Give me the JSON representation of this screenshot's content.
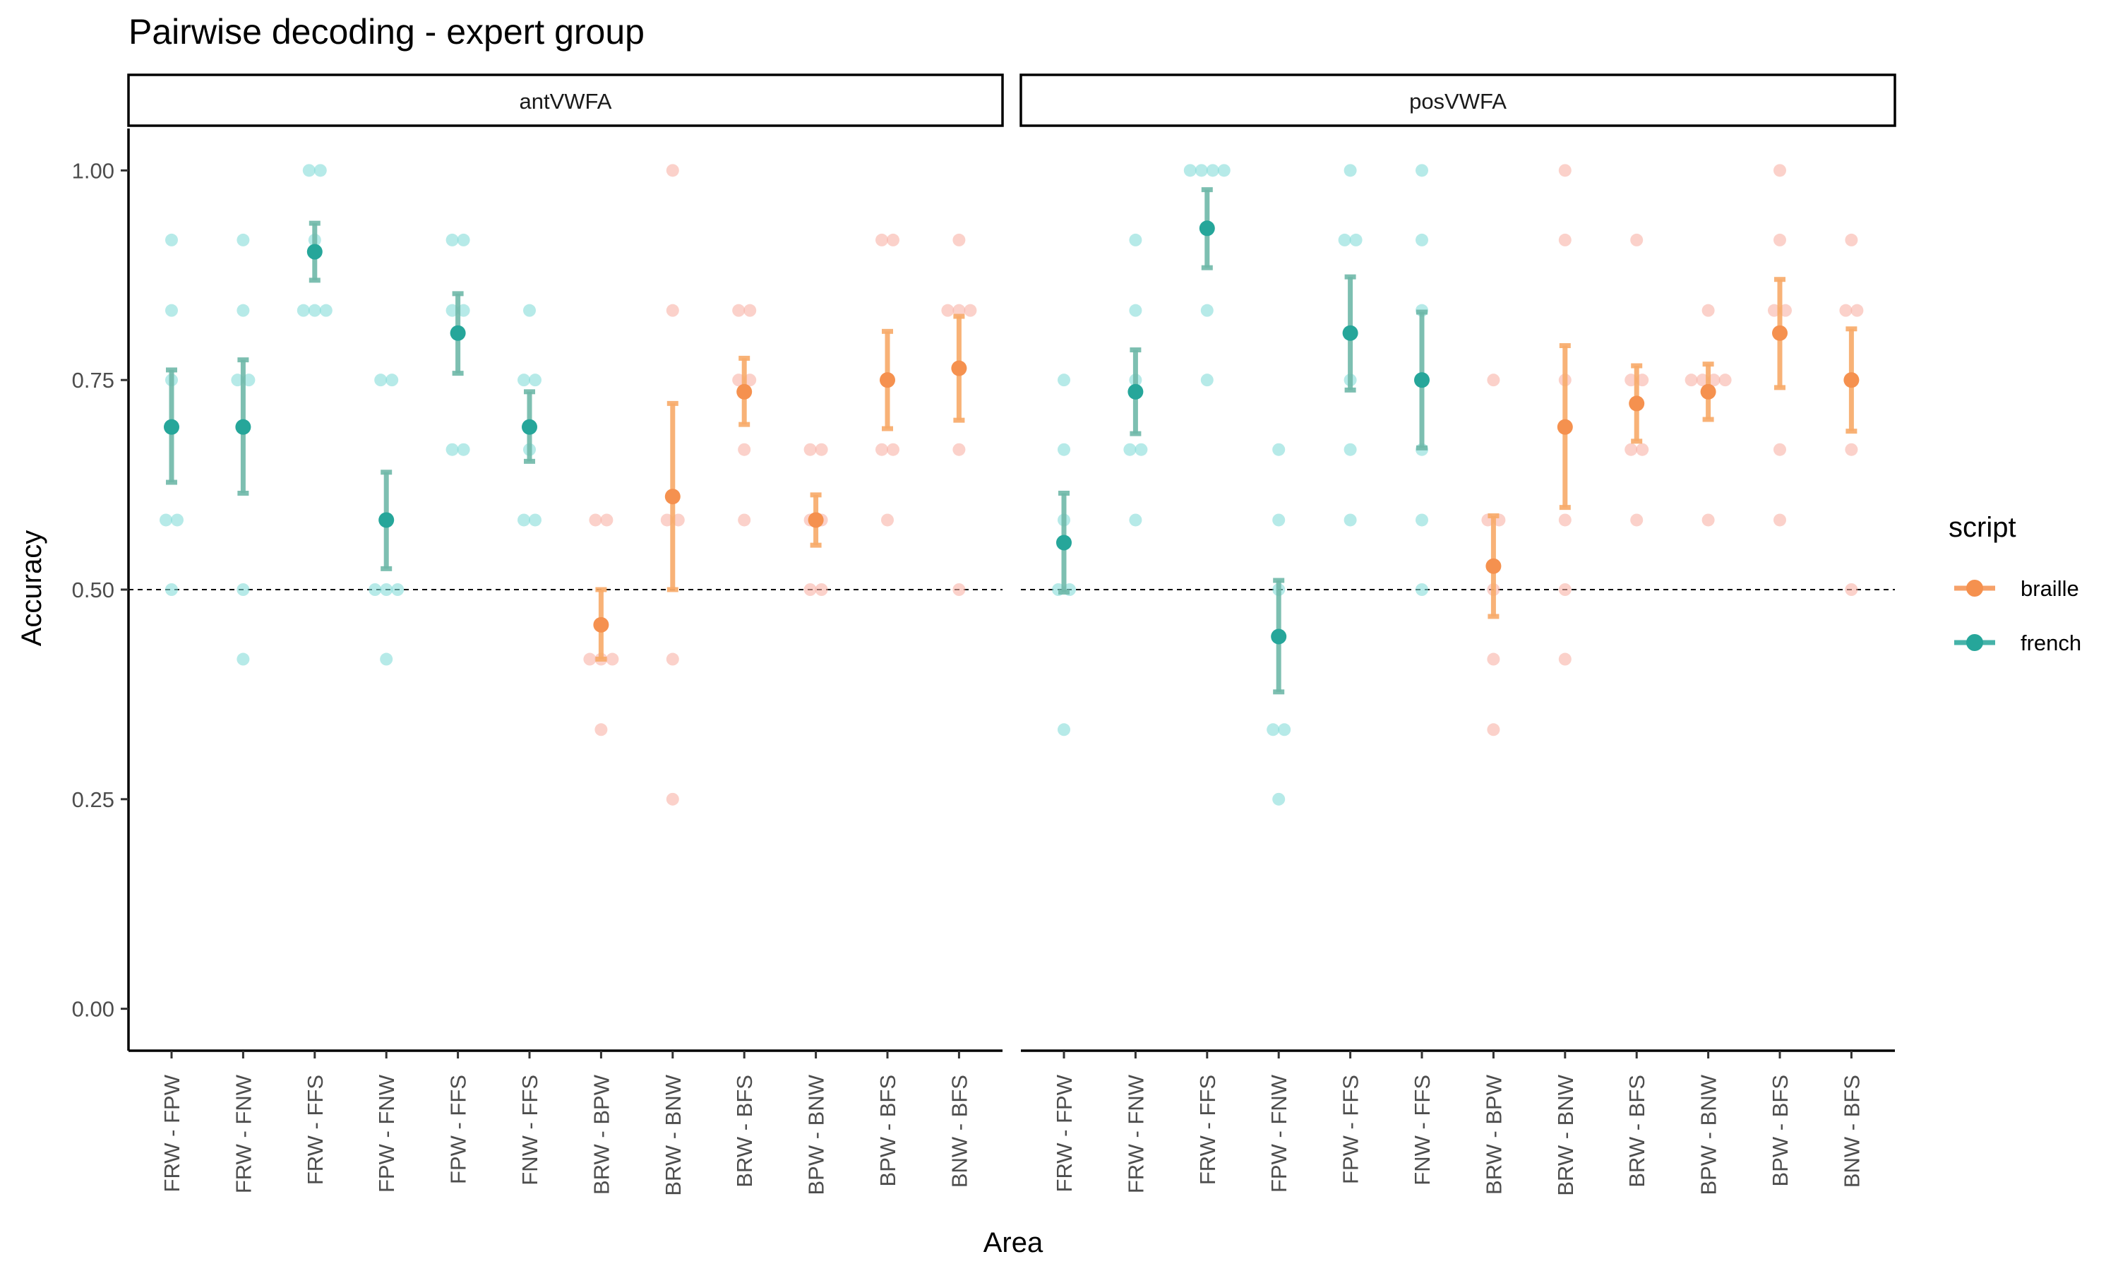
{
  "chart_data": {
    "type": "scatter",
    "title": "Pairwise decoding - expert group",
    "xlabel": "Area",
    "ylabel": "Accuracy",
    "ylim": [
      -0.05,
      1.05
    ],
    "yticks": [
      0,
      0.25,
      0.5,
      0.75,
      1.0
    ],
    "ytick_labels": [
      "0.00",
      "0.25",
      "0.50",
      "0.75",
      "1.00"
    ],
    "reference_line": 0.5,
    "grid": false,
    "legend": {
      "title": "script",
      "position": "right",
      "entries": [
        {
          "name": "braille",
          "color": "#F5914F"
        },
        {
          "name": "french",
          "color": "#26A69A"
        }
      ]
    },
    "colors": {
      "braille_point": "#F9B3A6",
      "french_point": "#86DCD8",
      "braille_mean": "#F5914F",
      "french_mean": "#26A69A",
      "braille_bar": "#F7AA68",
      "french_bar": "#6FB8A8"
    },
    "categories": [
      "FRW - FPW",
      "FRW - FNW",
      "FRW - FFS",
      "FPW - FNW",
      "FPW - FFS",
      "FNW - FFS",
      "BRW - BPW",
      "BRW - BNW",
      "BRW - BFS",
      "BPW - BNW",
      "BPW - BFS",
      "BNW - BFS"
    ],
    "category_script": [
      "french",
      "french",
      "french",
      "french",
      "french",
      "french",
      "braille",
      "braille",
      "braille",
      "braille",
      "braille",
      "braille"
    ],
    "panels": [
      {
        "name": "antVWFA",
        "groups": [
          {
            "mean": 0.694,
            "lower": 0.628,
            "upper": 0.762,
            "points": [
              0.917,
              0.833,
              0.75,
              0.583,
              0.583,
              0.5
            ]
          },
          {
            "mean": 0.694,
            "lower": 0.615,
            "upper": 0.774,
            "points": [
              0.917,
              0.833,
              0.75,
              0.75,
              0.5,
              0.417
            ]
          },
          {
            "mean": 0.903,
            "lower": 0.869,
            "upper": 0.937,
            "points": [
              1.0,
              1.0,
              0.917,
              0.833,
              0.833,
              0.833
            ]
          },
          {
            "mean": 0.583,
            "lower": 0.525,
            "upper": 0.64,
            "points": [
              0.75,
              0.75,
              0.5,
              0.5,
              0.5,
              0.417
            ]
          },
          {
            "mean": 0.806,
            "lower": 0.758,
            "upper": 0.853,
            "points": [
              0.917,
              0.917,
              0.833,
              0.833,
              0.667,
              0.667
            ]
          },
          {
            "mean": 0.694,
            "lower": 0.653,
            "upper": 0.736,
            "points": [
              0.833,
              0.75,
              0.75,
              0.667,
              0.583,
              0.583
            ]
          },
          {
            "mean": 0.458,
            "lower": 0.417,
            "upper": 0.5,
            "points": [
              0.583,
              0.583,
              0.417,
              0.417,
              0.417,
              0.333
            ]
          },
          {
            "mean": 0.611,
            "lower": 0.5,
            "upper": 0.722,
            "points": [
              1.0,
              0.833,
              0.583,
              0.583,
              0.417,
              0.25
            ]
          },
          {
            "mean": 0.736,
            "lower": 0.697,
            "upper": 0.776,
            "points": [
              0.833,
              0.833,
              0.75,
              0.75,
              0.667,
              0.583
            ]
          },
          {
            "mean": 0.583,
            "lower": 0.553,
            "upper": 0.613,
            "points": [
              0.667,
              0.667,
              0.583,
              0.583,
              0.5,
              0.5
            ]
          },
          {
            "mean": 0.75,
            "lower": 0.692,
            "upper": 0.808,
            "points": [
              0.917,
              0.917,
              0.75,
              0.667,
              0.667,
              0.583
            ]
          },
          {
            "mean": 0.764,
            "lower": 0.702,
            "upper": 0.826,
            "points": [
              0.917,
              0.833,
              0.833,
              0.833,
              0.667,
              0.5
            ]
          }
        ]
      },
      {
        "name": "posVWFA",
        "groups": [
          {
            "mean": 0.556,
            "lower": 0.497,
            "upper": 0.615,
            "points": [
              0.75,
              0.667,
              0.583,
              0.5,
              0.5,
              0.333
            ]
          },
          {
            "mean": 0.736,
            "lower": 0.686,
            "upper": 0.786,
            "points": [
              0.917,
              0.833,
              0.75,
              0.667,
              0.667,
              0.583
            ]
          },
          {
            "mean": 0.931,
            "lower": 0.884,
            "upper": 0.977,
            "points": [
              1.0,
              1.0,
              1.0,
              1.0,
              0.833,
              0.75
            ]
          },
          {
            "mean": 0.444,
            "lower": 0.378,
            "upper": 0.511,
            "points": [
              0.667,
              0.583,
              0.5,
              0.333,
              0.333,
              0.25
            ]
          },
          {
            "mean": 0.806,
            "lower": 0.738,
            "upper": 0.873,
            "points": [
              1.0,
              0.917,
              0.917,
              0.75,
              0.667,
              0.583
            ]
          },
          {
            "mean": 0.75,
            "lower": 0.669,
            "upper": 0.831,
            "points": [
              1.0,
              0.917,
              0.833,
              0.667,
              0.583,
              0.5
            ]
          },
          {
            "mean": 0.528,
            "lower": 0.468,
            "upper": 0.588,
            "points": [
              0.75,
              0.583,
              0.583,
              0.5,
              0.417,
              0.333
            ]
          },
          {
            "mean": 0.694,
            "lower": 0.598,
            "upper": 0.791,
            "points": [
              1.0,
              0.917,
              0.75,
              0.583,
              0.5,
              0.417
            ]
          },
          {
            "mean": 0.722,
            "lower": 0.677,
            "upper": 0.767,
            "points": [
              0.917,
              0.75,
              0.75,
              0.667,
              0.667,
              0.583
            ]
          },
          {
            "mean": 0.736,
            "lower": 0.703,
            "upper": 0.769,
            "points": [
              0.833,
              0.75,
              0.75,
              0.75,
              0.75,
              0.583
            ]
          },
          {
            "mean": 0.806,
            "lower": 0.741,
            "upper": 0.87,
            "points": [
              1.0,
              0.917,
              0.833,
              0.833,
              0.667,
              0.583
            ]
          },
          {
            "mean": 0.75,
            "lower": 0.689,
            "upper": 0.811,
            "points": [
              0.917,
              0.833,
              0.833,
              0.667,
              0.5
            ]
          }
        ]
      }
    ]
  }
}
